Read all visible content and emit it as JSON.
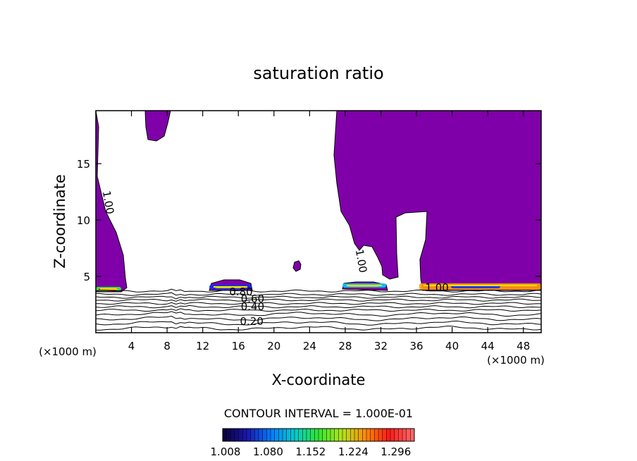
{
  "chart_data": {
    "type": "heatmap",
    "title": "saturation ratio",
    "xlabel": "X-coordinate",
    "ylabel": "Z-coordinate",
    "x_unit": "(×1000 m)",
    "z_unit": "(×1000 m)",
    "xlim": [
      0,
      50
    ],
    "ylim": [
      0,
      19.7
    ],
    "x_ticks": [
      4,
      8,
      12,
      16,
      20,
      24,
      28,
      32,
      36,
      40,
      44,
      48
    ],
    "y_ticks": [
      5,
      10,
      15
    ],
    "contour_interval_label": "CONTOUR INTERVAL = 1.000E-01",
    "contour_labels": [
      {
        "text": "1.00",
        "x": 1.0,
        "z": 11.5
      },
      {
        "text": "1.00",
        "x": 29.4,
        "z": 6.3
      },
      {
        "text": "1.00",
        "x": 38.3,
        "z": 3.7
      },
      {
        "text": "0.80",
        "x": 16.3,
        "z": 3.3
      },
      {
        "text": "0.60",
        "x": 17.6,
        "z": 2.7
      },
      {
        "text": "0.40",
        "x": 17.6,
        "z": 2.0
      },
      {
        "text": "0.20",
        "x": 17.5,
        "z": 0.7
      }
    ],
    "colorbar": {
      "ticks": [
        "1.008",
        "1.080",
        "1.152",
        "1.224",
        "1.296"
      ],
      "range": [
        1.008,
        1.332
      ]
    },
    "colors": {
      "supersaturated": "#7f00a8",
      "contour": "#000000"
    }
  }
}
